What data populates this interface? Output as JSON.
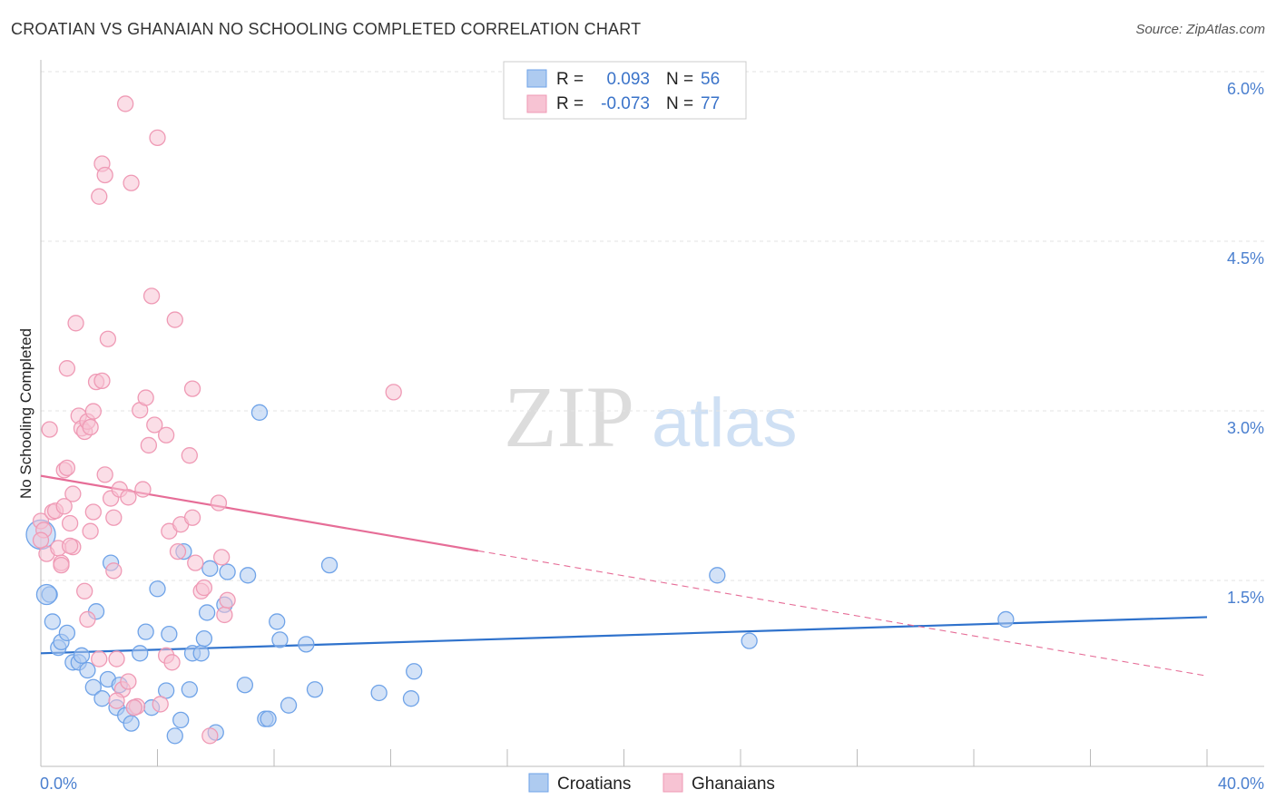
{
  "title": "CROATIAN VS GHANAIAN NO SCHOOLING COMPLETED CORRELATION CHART",
  "source": "Source: ZipAtlas.com",
  "watermark": {
    "zip": "ZIP",
    "atlas": "atlas"
  },
  "chart_data": {
    "type": "scatter",
    "title": "CROATIAN VS GHANAIAN NO SCHOOLING COMPLETED CORRELATION CHART",
    "xlabel": "",
    "ylabel": "No Schooling Completed",
    "xlim": [
      0,
      40
    ],
    "ylim": [
      0,
      6.3
    ],
    "x_tick_labels": [
      "0.0%",
      "40.0%"
    ],
    "y_ticks": [
      {
        "value": 1.5,
        "label": "1.5%"
      },
      {
        "value": 3.0,
        "label": "3.0%"
      },
      {
        "value": 4.5,
        "label": "4.5%"
      },
      {
        "value": 6.0,
        "label": "6.0%"
      }
    ],
    "grid": true,
    "legend_position": "top-center",
    "legend": [
      {
        "r_label": "R =",
        "r_value": "0.093",
        "n_label": "N =",
        "n_value": "56"
      },
      {
        "r_label": "R =",
        "r_value": "-0.073",
        "n_label": "N =",
        "n_value": "77"
      }
    ],
    "series": [
      {
        "name": "Croatians",
        "color": "#6fa3e8",
        "fill": "#aecbf0",
        "line_color": "#2f72cc",
        "trend": {
          "x0": 0,
          "y0": 1.0,
          "x1": 40,
          "y1": 1.32,
          "dashed_from": null
        },
        "points": [
          [
            0.0,
            2.05
          ],
          [
            0.3,
            1.52
          ],
          [
            0.4,
            1.28
          ],
          [
            0.6,
            1.05
          ],
          [
            0.7,
            1.1
          ],
          [
            0.9,
            1.18
          ],
          [
            1.1,
            0.92
          ],
          [
            1.3,
            0.92
          ],
          [
            1.4,
            0.98
          ],
          [
            1.6,
            0.85
          ],
          [
            1.8,
            0.7
          ],
          [
            1.9,
            1.37
          ],
          [
            2.1,
            0.6
          ],
          [
            2.3,
            0.77
          ],
          [
            2.4,
            1.8
          ],
          [
            2.6,
            0.52
          ],
          [
            2.7,
            0.72
          ],
          [
            2.9,
            0.45
          ],
          [
            3.1,
            0.38
          ],
          [
            3.2,
            0.52
          ],
          [
            3.4,
            1.0
          ],
          [
            3.6,
            1.19
          ],
          [
            3.8,
            0.52
          ],
          [
            4.0,
            1.57
          ],
          [
            4.3,
            0.67
          ],
          [
            4.4,
            1.17
          ],
          [
            4.6,
            0.27
          ],
          [
            4.8,
            0.41
          ],
          [
            4.9,
            1.9
          ],
          [
            5.1,
            0.68
          ],
          [
            5.2,
            1.0
          ],
          [
            5.5,
            1.0
          ],
          [
            5.6,
            1.13
          ],
          [
            5.7,
            1.36
          ],
          [
            6.0,
            0.3
          ],
          [
            5.8,
            1.75
          ],
          [
            6.3,
            1.43
          ],
          [
            6.4,
            1.72
          ],
          [
            7.0,
            0.72
          ],
          [
            7.1,
            1.69
          ],
          [
            7.5,
            3.13
          ],
          [
            7.7,
            0.42
          ],
          [
            7.8,
            0.42
          ],
          [
            8.1,
            1.28
          ],
          [
            8.2,
            1.12
          ],
          [
            8.5,
            0.54
          ],
          [
            9.1,
            1.08
          ],
          [
            9.4,
            0.68
          ],
          [
            9.9,
            1.78
          ],
          [
            11.6,
            0.65
          ],
          [
            12.8,
            0.84
          ],
          [
            12.7,
            0.6
          ],
          [
            23.2,
            1.69
          ],
          [
            24.3,
            1.11
          ],
          [
            33.1,
            1.3
          ],
          [
            0.2,
            1.52
          ]
        ]
      },
      {
        "name": "Ghanaians",
        "color": "#ef9ab5",
        "fill": "#f7c3d3",
        "line_color": "#e66d97",
        "trend": {
          "x0": 0,
          "y0": 2.57,
          "x1": 40,
          "y1": 0.8,
          "dashed_from": 15
        },
        "points": [
          [
            0.0,
            2.17
          ],
          [
            0.1,
            2.09
          ],
          [
            0.2,
            1.88
          ],
          [
            0.3,
            2.98
          ],
          [
            0.4,
            2.25
          ],
          [
            0.5,
            2.26
          ],
          [
            0.6,
            1.93
          ],
          [
            0.7,
            1.8
          ],
          [
            0.7,
            1.78
          ],
          [
            0.8,
            2.62
          ],
          [
            0.9,
            2.64
          ],
          [
            0.9,
            3.52
          ],
          [
            1.0,
            2.15
          ],
          [
            1.1,
            2.41
          ],
          [
            1.1,
            1.94
          ],
          [
            1.2,
            3.92
          ],
          [
            1.3,
            3.1
          ],
          [
            1.4,
            2.99
          ],
          [
            1.5,
            2.96
          ],
          [
            1.6,
            3.05
          ],
          [
            1.6,
            1.3
          ],
          [
            1.7,
            3.0
          ],
          [
            1.7,
            2.08
          ],
          [
            1.8,
            2.25
          ],
          [
            1.8,
            3.14
          ],
          [
            1.9,
            3.4
          ],
          [
            2.0,
            5.04
          ],
          [
            2.1,
            5.33
          ],
          [
            2.1,
            3.41
          ],
          [
            2.2,
            2.58
          ],
          [
            2.3,
            3.78
          ],
          [
            2.2,
            5.23
          ],
          [
            2.4,
            2.37
          ],
          [
            2.5,
            1.73
          ],
          [
            2.5,
            2.2
          ],
          [
            2.6,
            0.95
          ],
          [
            2.7,
            2.45
          ],
          [
            2.8,
            0.68
          ],
          [
            2.9,
            5.86
          ],
          [
            3.0,
            2.38
          ],
          [
            3.1,
            5.16
          ],
          [
            3.3,
            0.53
          ],
          [
            3.4,
            3.15
          ],
          [
            3.5,
            2.45
          ],
          [
            3.6,
            3.26
          ],
          [
            3.7,
            2.84
          ],
          [
            3.8,
            4.16
          ],
          [
            3.9,
            3.02
          ],
          [
            4.0,
            5.56
          ],
          [
            4.1,
            0.55
          ],
          [
            4.3,
            2.93
          ],
          [
            4.3,
            0.98
          ],
          [
            4.4,
            2.08
          ],
          [
            4.5,
            0.92
          ],
          [
            4.6,
            3.95
          ],
          [
            4.8,
            2.14
          ],
          [
            5.1,
            2.75
          ],
          [
            5.2,
            2.2
          ],
          [
            5.2,
            3.34
          ],
          [
            5.3,
            1.8
          ],
          [
            5.5,
            1.55
          ],
          [
            5.6,
            1.58
          ],
          [
            5.8,
            0.27
          ],
          [
            6.1,
            2.33
          ],
          [
            6.2,
            1.85
          ],
          [
            6.3,
            1.34
          ],
          [
            6.4,
            1.47
          ],
          [
            12.1,
            3.31
          ],
          [
            0.0,
            2.0
          ],
          [
            2.6,
            0.58
          ],
          [
            3.0,
            0.75
          ],
          [
            3.2,
            0.52
          ],
          [
            2.0,
            0.95
          ],
          [
            1.5,
            1.55
          ],
          [
            0.8,
            2.3
          ],
          [
            1.0,
            1.95
          ],
          [
            4.7,
            1.9
          ]
        ]
      }
    ]
  }
}
